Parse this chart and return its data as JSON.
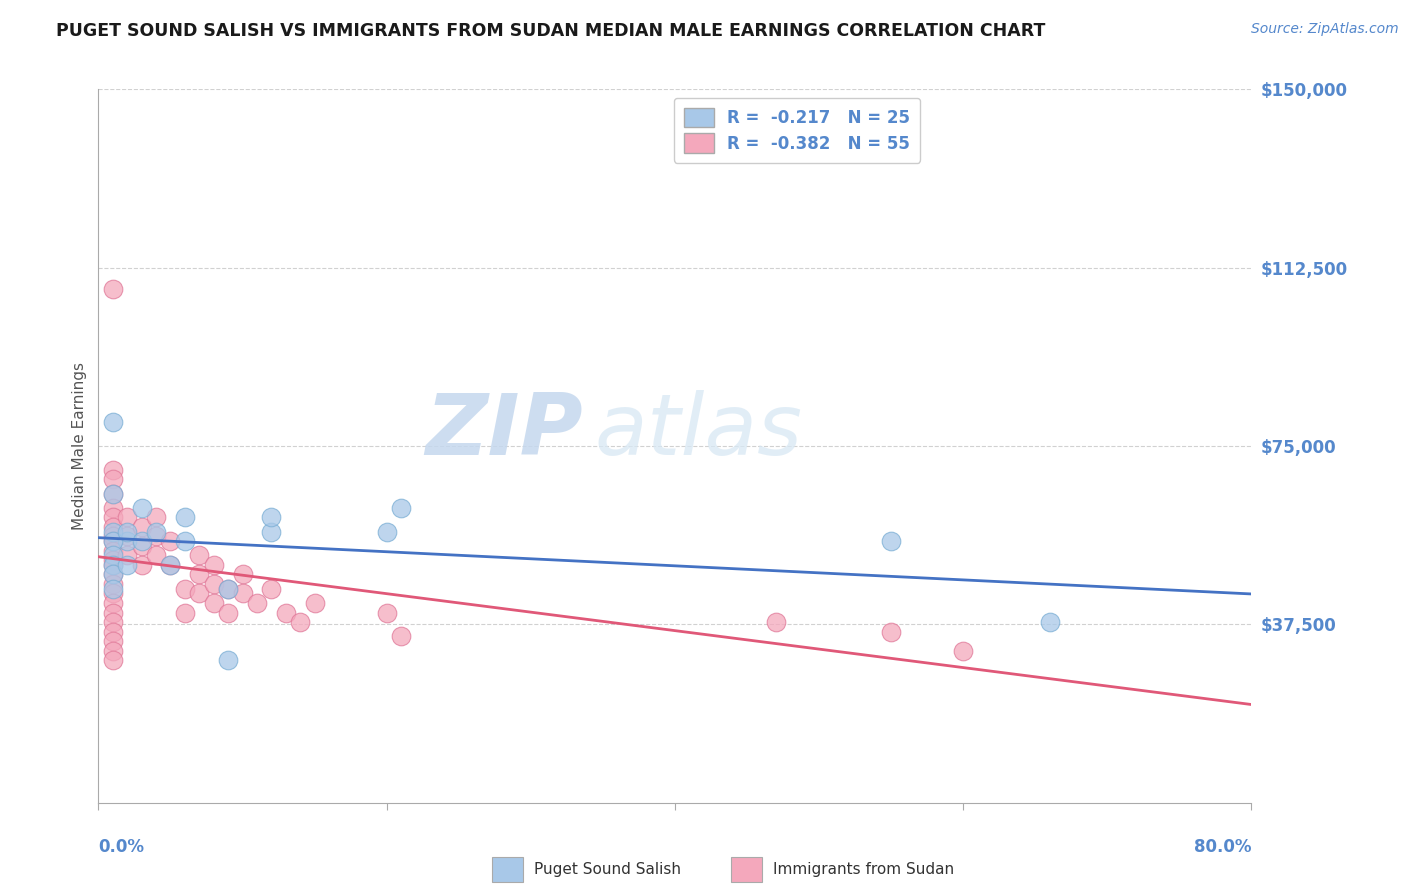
{
  "title": "PUGET SOUND SALISH VS IMMIGRANTS FROM SUDAN MEDIAN MALE EARNINGS CORRELATION CHART",
  "source": "Source: ZipAtlas.com",
  "ylabel": "Median Male Earnings",
  "xlim": [
    0,
    0.8
  ],
  "ylim": [
    0,
    150000
  ],
  "yticks": [
    37500,
    75000,
    112500,
    150000
  ],
  "ytick_labels": [
    "$37,500",
    "$75,000",
    "$112,500",
    "$150,000"
  ],
  "xticks": [
    0.0,
    0.2,
    0.4,
    0.6,
    0.8
  ],
  "xtick_left_label": "0.0%",
  "xtick_right_label": "80.0%",
  "watermark_zip": "ZIP",
  "watermark_atlas": "atlas",
  "legend_label1": "R =  -0.217   N = 25",
  "legend_label2": "R =  -0.382   N = 55",
  "series1_name": "Puget Sound Salish",
  "series2_name": "Immigrants from Sudan",
  "series1_color": "#a8c8e8",
  "series1_edge": "#7aaed4",
  "series2_color": "#f4a8bc",
  "series2_edge": "#e07898",
  "line1_color": "#4472c4",
  "line2_color": "#e05878",
  "axis_color": "#5588cc",
  "title_color": "#1a1a1a",
  "grid_color": "#cccccc",
  "source_color": "#5588cc",
  "series1_x": [
    0.02,
    0.01,
    0.01,
    0.01,
    0.01,
    0.01,
    0.01,
    0.01,
    0.01,
    0.02,
    0.02,
    0.03,
    0.03,
    0.04,
    0.05,
    0.06,
    0.06,
    0.09,
    0.09,
    0.12,
    0.12,
    0.2,
    0.21,
    0.55,
    0.66
  ],
  "series1_y": [
    55000,
    80000,
    65000,
    57000,
    55000,
    52000,
    50000,
    48000,
    45000,
    57000,
    50000,
    55000,
    62000,
    57000,
    50000,
    60000,
    55000,
    45000,
    30000,
    57000,
    60000,
    57000,
    62000,
    55000,
    38000
  ],
  "series2_x": [
    0.01,
    0.01,
    0.01,
    0.01,
    0.01,
    0.01,
    0.01,
    0.01,
    0.01,
    0.01,
    0.01,
    0.01,
    0.01,
    0.01,
    0.01,
    0.01,
    0.01,
    0.01,
    0.01,
    0.01,
    0.01,
    0.01,
    0.02,
    0.02,
    0.02,
    0.03,
    0.03,
    0.03,
    0.04,
    0.04,
    0.04,
    0.05,
    0.05,
    0.06,
    0.06,
    0.07,
    0.07,
    0.07,
    0.08,
    0.08,
    0.08,
    0.09,
    0.09,
    0.1,
    0.1,
    0.11,
    0.12,
    0.13,
    0.14,
    0.15,
    0.2,
    0.21,
    0.47,
    0.55,
    0.6
  ],
  "series2_y": [
    108000,
    70000,
    68000,
    65000,
    62000,
    60000,
    58000,
    56000,
    55000,
    53000,
    51000,
    50000,
    48000,
    46000,
    44000,
    42000,
    40000,
    38000,
    36000,
    34000,
    32000,
    30000,
    60000,
    56000,
    52000,
    58000,
    54000,
    50000,
    60000,
    56000,
    52000,
    55000,
    50000,
    45000,
    40000,
    52000,
    48000,
    44000,
    50000,
    46000,
    42000,
    45000,
    40000,
    48000,
    44000,
    42000,
    45000,
    40000,
    38000,
    42000,
    40000,
    35000,
    38000,
    36000,
    32000
  ]
}
